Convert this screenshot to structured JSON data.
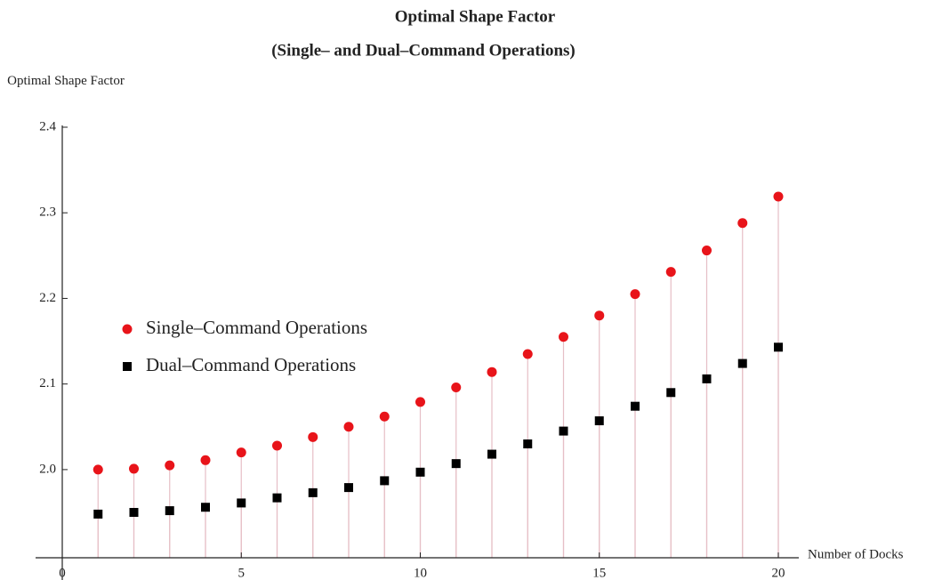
{
  "chart_data": {
    "type": "scatter",
    "title": "Optimal Shape Factor",
    "subtitle": "(Single– and Dual–Command Operations)",
    "xlabel": "Number of Docks",
    "ylabel": "Optimal Shape Factor",
    "x": [
      1,
      2,
      3,
      4,
      5,
      6,
      7,
      8,
      9,
      10,
      11,
      12,
      13,
      14,
      15,
      16,
      17,
      18,
      19,
      20
    ],
    "series": [
      {
        "name": "Single–Command Operations",
        "color": "#e8141a",
        "marker": "circle",
        "values": [
          2.0,
          2.001,
          2.005,
          2.011,
          2.02,
          2.028,
          2.038,
          2.05,
          2.062,
          2.079,
          2.096,
          2.114,
          2.135,
          2.155,
          2.18,
          2.205,
          2.231,
          2.256,
          2.288,
          2.319
        ]
      },
      {
        "name": "Dual–Command Operations",
        "color": "#000000",
        "marker": "square",
        "values": [
          1.948,
          1.95,
          1.952,
          1.956,
          1.961,
          1.967,
          1.973,
          1.979,
          1.987,
          1.997,
          2.007,
          2.018,
          2.03,
          2.045,
          2.057,
          2.074,
          2.09,
          2.106,
          2.124,
          2.143
        ]
      }
    ],
    "dropline_color": "#e6bfc6",
    "xlim": [
      0,
      20
    ],
    "xticks": [
      0,
      5,
      10,
      15,
      20
    ],
    "ylim": [
      1.897,
      2.4
    ],
    "yticks": [
      {
        "value": 2,
        "label": "2.0"
      },
      2.1,
      2.2,
      2.3,
      2.4
    ],
    "grid": false
  }
}
